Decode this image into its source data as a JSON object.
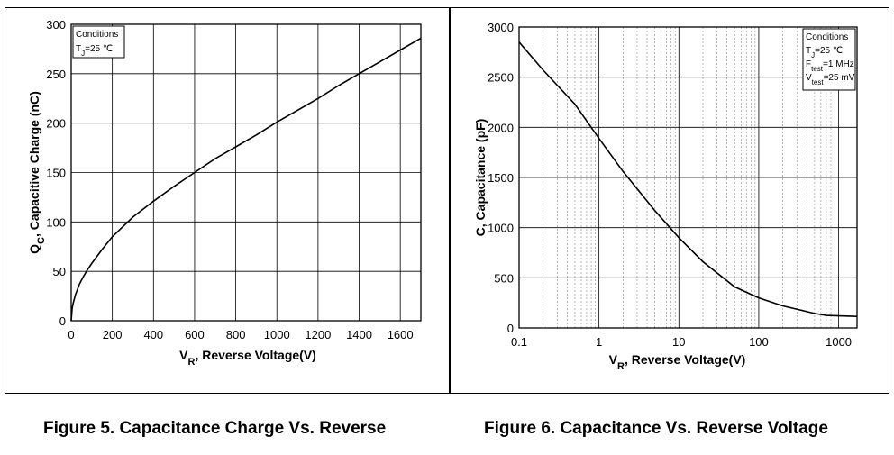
{
  "chart_data": [
    {
      "type": "line",
      "caption": "Figure 5. Capacitance Charge Vs. Reverse",
      "xlabel_main": "V",
      "xlabel_sub": "R",
      "xlabel_rest": ",  Reverse Voltage(V)",
      "ylabel_main": "Q",
      "ylabel_sub": "C",
      "ylabel_rest": ", Capacitive Charge (nC)",
      "xlim": [
        0,
        1700
      ],
      "ylim": [
        0,
        300
      ],
      "x_ticks": [
        0,
        200,
        400,
        600,
        800,
        1000,
        1200,
        1400,
        1600
      ],
      "y_ticks": [
        0,
        50,
        100,
        150,
        200,
        250,
        300
      ],
      "grid": true,
      "legend": {
        "placement": "top-left",
        "title": "Conditions",
        "lines": [
          {
            "main": "T",
            "sub": "J",
            "rest": "=25 ℃"
          }
        ]
      },
      "series": [
        {
          "x": [
            0,
            5,
            10,
            20,
            40,
            60,
            80,
            100,
            150,
            200,
            300,
            400,
            500,
            600,
            700,
            800,
            900,
            1000,
            1100,
            1200,
            1300,
            1400,
            1500,
            1600,
            1700
          ],
          "y": [
            0,
            13,
            18,
            26,
            37,
            45,
            52,
            58,
            72,
            85,
            105,
            121,
            136,
            150,
            164,
            176,
            188,
            201,
            213,
            225,
            238,
            250,
            262,
            274,
            286
          ]
        }
      ]
    },
    {
      "type": "line",
      "caption": "Figure 6. Capacitance Vs. Reverse Voltage",
      "xlabel_main": "V",
      "xlabel_sub": "R",
      "xlabel_rest": ", Reverse Voltage(V)",
      "ylabel": "C, Capacitance (pF)",
      "x_scale": "log",
      "xlim": [
        0.1,
        1700
      ],
      "ylim": [
        0,
        3000
      ],
      "x_ticks": [
        "0.1",
        "1",
        "10",
        "100",
        "1000"
      ],
      "y_ticks": [
        0,
        500,
        1000,
        1500,
        2000,
        2500,
        3000
      ],
      "grid": true,
      "legend": {
        "placement": "top-right",
        "title": "Conditions",
        "lines": [
          {
            "main": "T",
            "sub": "J",
            "rest": "=25 ℃"
          },
          {
            "main": "F",
            "sub": "test",
            "rest": "=1 MHz"
          },
          {
            "main": "V",
            "sub": "test",
            "rest": "=25 mV"
          }
        ]
      },
      "series": [
        {
          "x": [
            0.1,
            0.2,
            0.5,
            1,
            2,
            5,
            10,
            20,
            50,
            100,
            200,
            500,
            700,
            1000,
            1700
          ],
          "y": [
            2850,
            2570,
            2230,
            1890,
            1560,
            1170,
            900,
            660,
            410,
            300,
            220,
            145,
            125,
            120,
            115
          ]
        }
      ]
    }
  ]
}
